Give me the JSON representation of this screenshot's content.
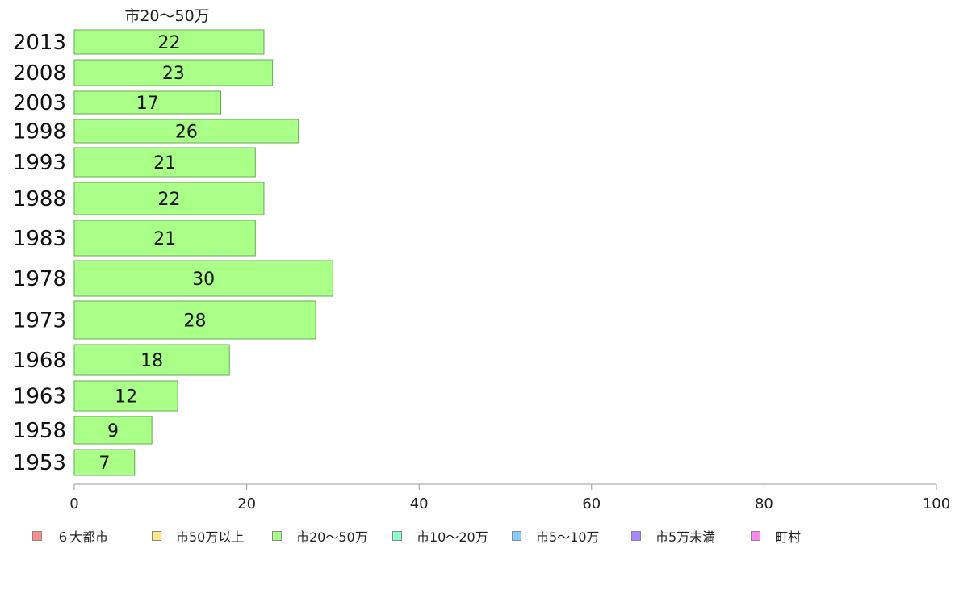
{
  "chart_data": {
    "type": "bar",
    "orientation": "horizontal",
    "title": "市20～50万",
    "categories": [
      "2013",
      "2008",
      "2003",
      "1998",
      "1993",
      "1988",
      "1983",
      "1978",
      "1973",
      "1968",
      "1963",
      "1958",
      "1953"
    ],
    "series": [
      {
        "name": "市20～50万",
        "values": [
          22,
          23,
          17,
          26,
          21,
          22,
          21,
          30,
          28,
          18,
          12,
          9,
          7
        ],
        "color": "#aaff88"
      }
    ],
    "xlim": [
      0,
      100
    ],
    "xticks": [
      0,
      20,
      40,
      60,
      80,
      100
    ],
    "legend_position": "bottom",
    "grid": false
  },
  "legend": {
    "items": [
      {
        "label": "６大都市",
        "color": "#ff8c8c"
      },
      {
        "label": "市50万以上",
        "color": "#ffe88c"
      },
      {
        "label": "市20～50万",
        "color": "#aaff88"
      },
      {
        "label": "市10～20万",
        "color": "#88ffcc"
      },
      {
        "label": "市5～10万",
        "color": "#88ccff"
      },
      {
        "label": "市5万未満",
        "color": "#aa88ff"
      },
      {
        "label": "町村",
        "color": "#ff88ee"
      }
    ]
  }
}
